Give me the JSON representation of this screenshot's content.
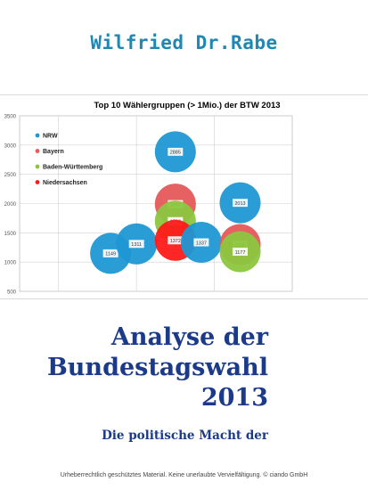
{
  "book": {
    "author": "Wilfried Dr.Rabe",
    "title_lines": [
      "Analyse der",
      "Bundestagswahl",
      "2013"
    ],
    "subtitle": "Die politische Macht der",
    "footer": "Urheberrechtlich geschütztes Material. Keine unerlaubte Vervielfältigung. © ciando GmbH"
  },
  "chart_data": {
    "type": "bubble",
    "title": "Top 10  Wählergruppen (> 1Mio.) der BTW 2013",
    "ylim": [
      500,
      3500
    ],
    "yticks": [
      500,
      1000,
      1500,
      2000,
      2500,
      3000,
      3500
    ],
    "xlim": [
      0,
      10
    ],
    "grid": true,
    "legend_position": "top-left",
    "legend": [
      {
        "label": "NRW",
        "color": "#1f97d4"
      },
      {
        "label": "Bayern",
        "color": "#e55a5a"
      },
      {
        "label": "Baden-Württemberg",
        "color": "#8cc63e"
      },
      {
        "label": "Niedersachsen",
        "color": "#ff1a1a"
      }
    ],
    "bubbles": [
      {
        "x": 2.0,
        "y": 1149,
        "label": "1149",
        "color": "#1f97d4"
      },
      {
        "x": 3.0,
        "y": 1311,
        "label": "1311",
        "color": "#1f97d4"
      },
      {
        "x": 4.5,
        "y": 2885,
        "label": "2885",
        "color": "#1f97d4"
      },
      {
        "x": 4.5,
        "y": 1991,
        "label": "1991",
        "color": "#e55a5a"
      },
      {
        "x": 4.5,
        "y": 1700,
        "label": "1700",
        "color": "#8cc63e"
      },
      {
        "x": 4.5,
        "y": 1372,
        "label": "1372",
        "color": "#ff1a1a"
      },
      {
        "x": 5.5,
        "y": 1337,
        "label": "1337",
        "color": "#1f97d4"
      },
      {
        "x": 7.0,
        "y": 2013,
        "label": "2013",
        "color": "#1f97d4"
      },
      {
        "x": 7.0,
        "y": 1300,
        "label": "1300",
        "color": "#e55a5a"
      },
      {
        "x": 7.0,
        "y": 1177,
        "label": "1177",
        "color": "#8cc63e"
      }
    ]
  }
}
